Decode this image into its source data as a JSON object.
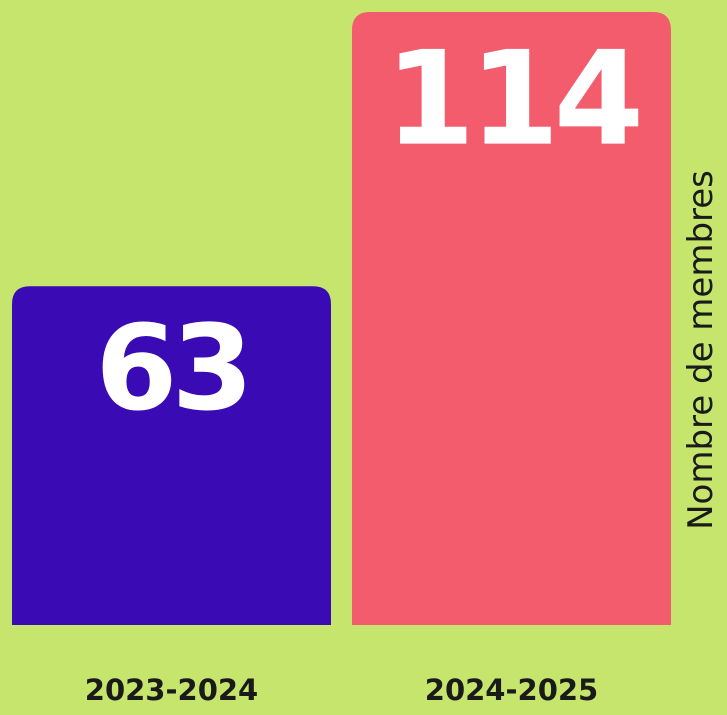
{
  "chart_data": {
    "type": "bar",
    "y_label": "Nombre de membres",
    "categories": [
      "2023-2024",
      "2024-2025"
    ],
    "values": [
      63,
      114
    ],
    "colors": [
      "#3a0ab5",
      "#f25c6c"
    ],
    "ylim": [
      0,
      114
    ]
  }
}
